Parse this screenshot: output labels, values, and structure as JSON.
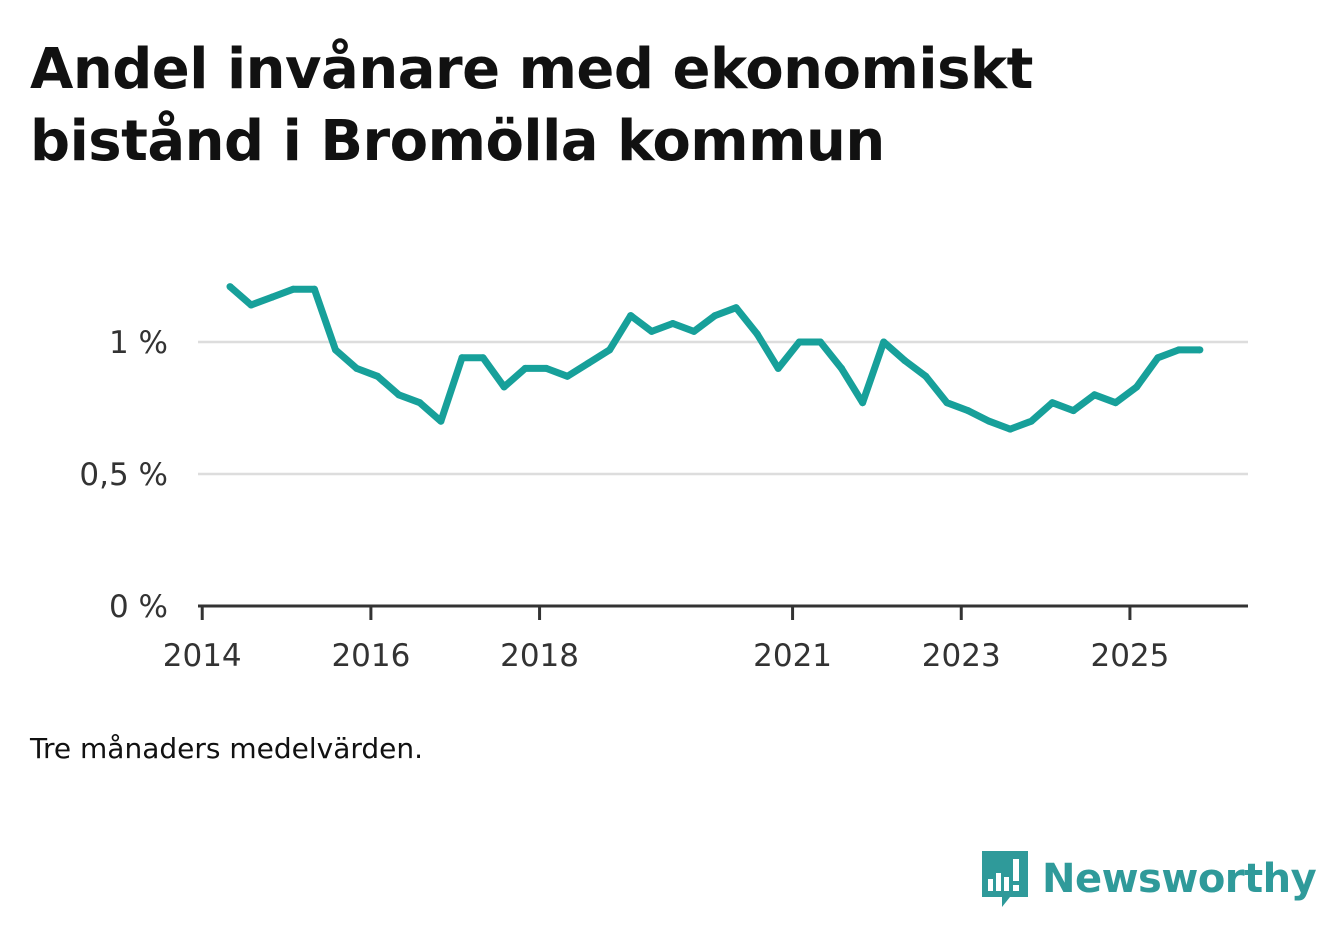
{
  "title": "Andel invånare med ekonomiskt bistånd i Bromölla kommun",
  "note": "Tre månaders medelvärden.",
  "brand": {
    "name": "Newsworthy",
    "icon": "newsworthy-logo-icon",
    "color": "#2f9a9a"
  },
  "colors": {
    "line": "#17a09a",
    "grid": "#dddddd",
    "axis": "#333333",
    "text": "#111111"
  },
  "chart_data": {
    "type": "line",
    "title": "Andel invånare med ekonomiskt bistånd i Bromölla kommun",
    "xlabel": "",
    "ylabel": "",
    "x_range": [
      2013.95,
      2026.4
    ],
    "ylim": [
      0,
      1.2
    ],
    "yticks": [
      {
        "value": 0,
        "label": "0 %"
      },
      {
        "value": 0.5,
        "label": "0,5 %"
      },
      {
        "value": 1,
        "label": "1 %"
      }
    ],
    "xticks": [
      {
        "value": 2014,
        "label": "2014"
      },
      {
        "value": 2016,
        "label": "2016"
      },
      {
        "value": 2018,
        "label": "2018"
      },
      {
        "value": 2021,
        "label": "2021"
      },
      {
        "value": 2023,
        "label": "2023"
      },
      {
        "value": 2025,
        "label": "2025"
      }
    ],
    "series": [
      {
        "name": "Andel invånare med ekonomiskt bistånd",
        "x": [
          2014.33,
          2014.58,
          2014.83,
          2015.08,
          2015.33,
          2015.58,
          2015.83,
          2016.08,
          2016.33,
          2016.58,
          2016.83,
          2017.08,
          2017.33,
          2017.58,
          2017.83,
          2018.08,
          2018.33,
          2018.58,
          2018.83,
          2019.08,
          2019.33,
          2019.58,
          2019.83,
          2020.08,
          2020.33,
          2020.58,
          2020.83,
          2021.08,
          2021.33,
          2021.58,
          2021.83,
          2022.08,
          2022.33,
          2022.58,
          2022.83,
          2023.08,
          2023.33,
          2023.58,
          2023.83,
          2024.08,
          2024.33,
          2024.58,
          2024.83,
          2025.08,
          2025.33,
          2025.58,
          2025.83
        ],
        "values": [
          1.21,
          1.14,
          1.17,
          1.2,
          1.2,
          0.97,
          0.9,
          0.87,
          0.8,
          0.77,
          0.7,
          0.94,
          0.94,
          0.83,
          0.9,
          0.9,
          0.87,
          0.92,
          0.97,
          1.1,
          1.04,
          1.07,
          1.04,
          1.1,
          1.13,
          1.03,
          0.9,
          1.0,
          1.0,
          0.9,
          0.77,
          1.0,
          0.93,
          0.87,
          0.77,
          0.74,
          0.7,
          0.67,
          0.7,
          0.77,
          0.74,
          0.8,
          0.77,
          0.83,
          0.94,
          0.97,
          0.97
        ]
      }
    ]
  }
}
